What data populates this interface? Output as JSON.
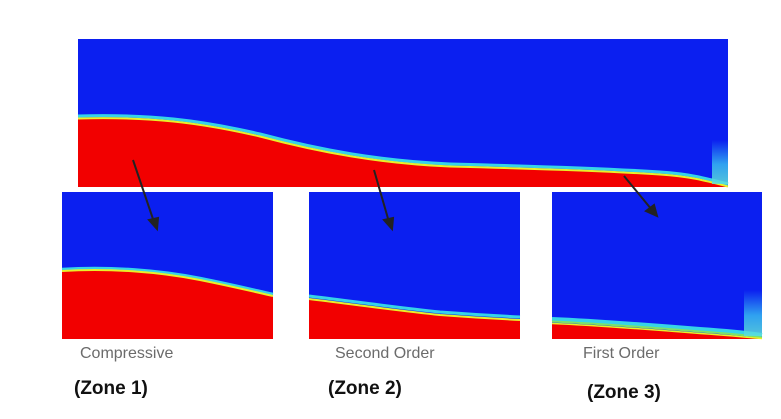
{
  "colors": {
    "blue": "#0b1ff0",
    "red": "#f20000",
    "interface_cyan": "#36d4e8",
    "interface_yellow": "#e8f02a",
    "interface_green": "#7be26a",
    "arrow": "#222222"
  },
  "panels": [
    {
      "scheme": "Compressive",
      "zone": "(Zone 1)"
    },
    {
      "scheme": "Second Order",
      "zone": "(Zone 2)"
    },
    {
      "scheme": "First Order",
      "zone": "(Zone 3)"
    }
  ]
}
